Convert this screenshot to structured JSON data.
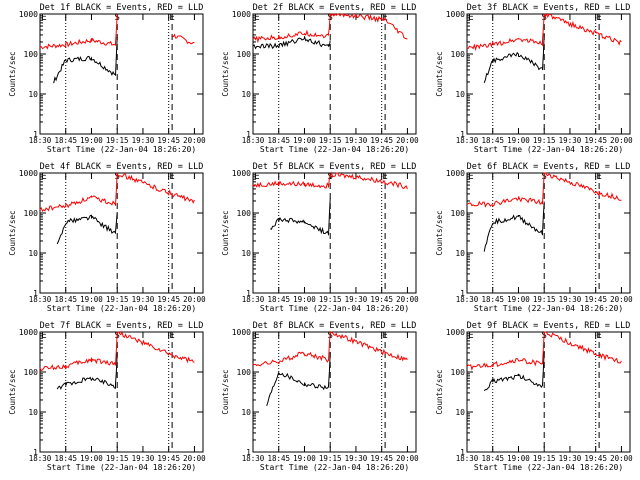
{
  "chart_data": [
    {
      "type": "line",
      "title": "Det 1f BLACK = Events, RED = LLD",
      "xlabel": "Start Time (22-Jan-04 18:26:20)",
      "ylabel": "Counts/sec",
      "x_ticks": [
        "18:30",
        "18:45",
        "19:00",
        "19:15",
        "19:30",
        "19:45",
        "20:00"
      ],
      "y_ticks": [
        "1",
        "10",
        "100",
        "1000"
      ],
      "ylim": [
        1,
        1000
      ],
      "scale": "log",
      "vlines": {
        "dotted": [
          "18:45",
          "19:45"
        ],
        "dashed": [
          "19:15",
          "19:47"
        ]
      },
      "markers": {
        "S": "19:15",
        "E": "19:47",
        "left_E": "18:30"
      },
      "series": [
        {
          "name": "RED = LLD",
          "color": "#ff0000",
          "x": [
            "18:30",
            "18:45",
            "19:00",
            "19:14",
            "19:15",
            "19:30",
            "19:47",
            "20:00"
          ],
          "y": [
            150,
            170,
            220,
            170,
            1000,
            null,
            300,
            180
          ]
        },
        {
          "name": "BLACK = Events",
          "color": "#000000",
          "x": [
            "18:38",
            "18:45",
            "19:00",
            "19:14",
            "19:15",
            "19:30",
            "19:47",
            "20:00"
          ],
          "y": [
            20,
            70,
            80,
            30,
            250,
            null,
            null,
            null
          ]
        }
      ]
    },
    {
      "type": "line",
      "title": "Det 2f BLACK = Events, RED = LLD",
      "xlabel": "Start Time (22-Jan-04 18:26:20)",
      "ylabel": "Counts/sec",
      "x_ticks": [
        "18:30",
        "18:45",
        "19:00",
        "19:15",
        "19:30",
        "19:45",
        "20:00"
      ],
      "y_ticks": [
        "1",
        "10",
        "100",
        "1000"
      ],
      "ylim": [
        1,
        1000
      ],
      "scale": "log",
      "vlines": {
        "dotted": [
          "18:45",
          "19:45"
        ],
        "dashed": [
          "19:15",
          "19:47"
        ]
      },
      "markers": {
        "S": "19:15",
        "E": "19:47",
        "left_E": "18:30"
      },
      "series": [
        {
          "name": "RED = LLD",
          "color": "#ff0000",
          "x": [
            "18:30",
            "18:45",
            "19:00",
            "19:14",
            "19:15",
            "19:30",
            "19:47",
            "20:00"
          ],
          "y": [
            230,
            260,
            330,
            280,
            1000,
            900,
            700,
            230
          ]
        },
        {
          "name": "BLACK = Events",
          "color": "#000000",
          "x": [
            "18:30",
            "18:45",
            "19:00",
            "19:14",
            "19:15"
          ],
          "y": [
            150,
            160,
            250,
            150,
            200
          ]
        }
      ]
    },
    {
      "type": "line",
      "title": "Det 3f BLACK = Events, RED = LLD",
      "xlabel": "Start Time (22-Jan-04 18:26:20)",
      "ylabel": "Counts/sec",
      "x_ticks": [
        "18:30",
        "18:45",
        "19:00",
        "19:15",
        "19:30",
        "19:45",
        "20:00"
      ],
      "y_ticks": [
        "1",
        "10",
        "100",
        "1000"
      ],
      "ylim": [
        1,
        1000
      ],
      "scale": "log",
      "vlines": {
        "dotted": [
          "18:45",
          "19:45"
        ],
        "dashed": [
          "19:15",
          "19:47"
        ]
      },
      "markers": {
        "S": "19:15",
        "E": "19:47",
        "left_E": "18:30"
      },
      "series": [
        {
          "name": "RED = LLD",
          "color": "#ff0000",
          "x": [
            "18:30",
            "18:45",
            "19:00",
            "19:14",
            "19:15",
            "19:47",
            "20:00"
          ],
          "y": [
            140,
            170,
            240,
            190,
            1000,
            300,
            190
          ]
        },
        {
          "name": "BLACK = Events",
          "color": "#000000",
          "x": [
            "18:40",
            "18:45",
            "19:00",
            "19:14",
            "19:15"
          ],
          "y": [
            20,
            70,
            100,
            40,
            300
          ]
        }
      ]
    },
    {
      "type": "line",
      "title": "Det 4f BLACK = Events, RED = LLD",
      "xlabel": "Start Time (22-Jan-04 18:26:20)",
      "ylabel": "Counts/sec",
      "x_ticks": [
        "18:30",
        "18:45",
        "19:00",
        "19:15",
        "19:30",
        "19:45",
        "20:00"
      ],
      "y_ticks": [
        "1",
        "10",
        "100",
        "1000"
      ],
      "ylim": [
        1,
        1000
      ],
      "scale": "log",
      "vlines": {
        "dotted": [
          "18:45",
          "19:45"
        ],
        "dashed": [
          "19:15",
          "19:47"
        ]
      },
      "markers": {
        "S": "19:15",
        "E": "19:47",
        "left_E": "18:30"
      },
      "series": [
        {
          "name": "RED = LLD",
          "color": "#ff0000",
          "x": [
            "18:30",
            "18:45",
            "19:00",
            "19:14",
            "19:15",
            "19:47",
            "20:00"
          ],
          "y": [
            120,
            150,
            240,
            170,
            1000,
            300,
            190
          ]
        },
        {
          "name": "BLACK = Events",
          "color": "#000000",
          "x": [
            "18:40",
            "18:45",
            "19:00",
            "19:14",
            "19:15"
          ],
          "y": [
            15,
            60,
            80,
            30,
            120
          ]
        }
      ]
    },
    {
      "type": "line",
      "title": "Det 5f BLACK = Events, RED = LLD",
      "xlabel": "Start Time (22-Jan-04 18:26:20)",
      "ylabel": "Counts/sec",
      "x_ticks": [
        "18:30",
        "18:45",
        "19:00",
        "19:15",
        "19:30",
        "19:45",
        "20:00"
      ],
      "y_ticks": [
        "1",
        "10",
        "100",
        "1000"
      ],
      "ylim": [
        1,
        1000
      ],
      "scale": "log",
      "vlines": {
        "dotted": [
          "18:45",
          "19:45"
        ],
        "dashed": [
          "19:15",
          "19:47"
        ]
      },
      "markers": {
        "S": "19:15",
        "E": "19:47",
        "left_E": "18:30"
      },
      "series": [
        {
          "name": "RED = LLD",
          "color": "#ff0000",
          "x": [
            "18:30",
            "18:45",
            "19:00",
            "19:14",
            "19:15",
            "19:30",
            "19:47",
            "20:00"
          ],
          "y": [
            500,
            550,
            520,
            480,
            900,
            800,
            600,
            450
          ]
        },
        {
          "name": "BLACK = Events",
          "color": "#000000",
          "x": [
            "18:40",
            "18:45",
            "19:00",
            "19:14",
            "19:15"
          ],
          "y": [
            40,
            70,
            60,
            30,
            250
          ]
        }
      ]
    },
    {
      "type": "line",
      "title": "Det 6f BLACK = Events, RED = LLD",
      "xlabel": "Start Time (22-Jan-04 18:26:20)",
      "ylabel": "Counts/sec",
      "x_ticks": [
        "18:30",
        "18:45",
        "19:00",
        "19:15",
        "19:30",
        "19:45",
        "20:00"
      ],
      "y_ticks": [
        "1",
        "10",
        "100",
        "1000"
      ],
      "ylim": [
        1,
        1000
      ],
      "scale": "log",
      "vlines": {
        "dotted": [
          "18:45",
          "19:45"
        ],
        "dashed": [
          "19:15",
          "19:47"
        ]
      },
      "markers": {
        "S": "19:15",
        "E": "19:47",
        "left_E": "18:30"
      },
      "series": [
        {
          "name": "RED = LLD",
          "color": "#ff0000",
          "x": [
            "18:30",
            "18:45",
            "19:00",
            "19:14",
            "19:15",
            "19:47",
            "20:00"
          ],
          "y": [
            160,
            170,
            230,
            180,
            1000,
            320,
            230
          ]
        },
        {
          "name": "BLACK = Events",
          "color": "#000000",
          "x": [
            "18:40",
            "18:45",
            "19:00",
            "19:14",
            "19:15"
          ],
          "y": [
            12,
            60,
            80,
            30,
            200
          ]
        }
      ]
    },
    {
      "type": "line",
      "title": "Det 7f BLACK = Events, RED = LLD",
      "xlabel": "Start Time (22-Jan-04 18:26:20)",
      "ylabel": "Counts/sec",
      "x_ticks": [
        "18:30",
        "18:45",
        "19:00",
        "19:15",
        "19:30",
        "19:45",
        "20:00"
      ],
      "y_ticks": [
        "1",
        "10",
        "100",
        "1000"
      ],
      "ylim": [
        1,
        1000
      ],
      "scale": "log",
      "vlines": {
        "dotted": [
          "18:45",
          "19:45"
        ],
        "dashed": [
          "19:15",
          "19:47"
        ]
      },
      "markers": {
        "S": "19:15",
        "E": "19:47",
        "left_E": "18:30"
      },
      "series": [
        {
          "name": "RED = LLD",
          "color": "#ff0000",
          "x": [
            "18:30",
            "18:45",
            "19:00",
            "19:14",
            "19:15",
            "19:47",
            "20:00"
          ],
          "y": [
            120,
            140,
            200,
            160,
            1000,
            260,
            180
          ]
        },
        {
          "name": "BLACK = Events",
          "color": "#000000",
          "x": [
            "18:40",
            "18:45",
            "19:00",
            "19:14",
            "19:15"
          ],
          "y": [
            35,
            50,
            70,
            45,
            300
          ]
        }
      ]
    },
    {
      "type": "line",
      "title": "Det 8f BLACK = Events, RED = LLD",
      "xlabel": "Start Time (22-Jan-04 18:26:20)",
      "ylabel": "Counts/sec",
      "x_ticks": [
        "18:30",
        "18:45",
        "19:00",
        "19:15",
        "19:30",
        "19:45",
        "20:00"
      ],
      "y_ticks": [
        "1",
        "10",
        "100",
        "1000"
      ],
      "ylim": [
        1,
        1000
      ],
      "scale": "log",
      "vlines": {
        "dotted": [
          "18:45",
          "19:45"
        ],
        "dashed": [
          "19:15",
          "19:47"
        ]
      },
      "markers": {
        "S": "19:15",
        "E": "19:47",
        "left_E": "18:30"
      },
      "series": [
        {
          "name": "RED = LLD",
          "color": "#ff0000",
          "x": [
            "18:30",
            "18:45",
            "19:00",
            "19:14",
            "19:15",
            "19:47",
            "20:00"
          ],
          "y": [
            150,
            180,
            300,
            200,
            1000,
            300,
            200
          ]
        },
        {
          "name": "BLACK = Events",
          "color": "#000000",
          "x": [
            "18:38",
            "18:45",
            "19:00",
            "19:14",
            "19:15"
          ],
          "y": [
            15,
            100,
            50,
            40,
            300
          ]
        }
      ]
    },
    {
      "type": "line",
      "title": "Det 9f BLACK = Events, RED = LLD",
      "xlabel": "Start Time (22-Jan-04 18:26:20)",
      "ylabel": "Counts/sec",
      "x_ticks": [
        "18:30",
        "18:45",
        "19:00",
        "19:15",
        "19:30",
        "19:45",
        "20:00"
      ],
      "y_ticks": [
        "1",
        "10",
        "100",
        "1000"
      ],
      "ylim": [
        1,
        1000
      ],
      "scale": "log",
      "vlines": {
        "dotted": [
          "18:45",
          "19:45"
        ],
        "dashed": [
          "19:15",
          "19:47"
        ]
      },
      "markers": {
        "S": "19:15",
        "E": "19:47",
        "left_E": "18:30"
      },
      "series": [
        {
          "name": "RED = LLD",
          "color": "#ff0000",
          "x": [
            "18:30",
            "18:45",
            "19:00",
            "19:14",
            "19:15",
            "19:47",
            "20:00"
          ],
          "y": [
            130,
            150,
            200,
            160,
            1000,
            260,
            180
          ]
        },
        {
          "name": "BLACK = Events",
          "color": "#000000",
          "x": [
            "18:40",
            "18:45",
            "19:00",
            "19:14",
            "19:15"
          ],
          "y": [
            30,
            60,
            80,
            45,
            300
          ]
        }
      ]
    }
  ]
}
